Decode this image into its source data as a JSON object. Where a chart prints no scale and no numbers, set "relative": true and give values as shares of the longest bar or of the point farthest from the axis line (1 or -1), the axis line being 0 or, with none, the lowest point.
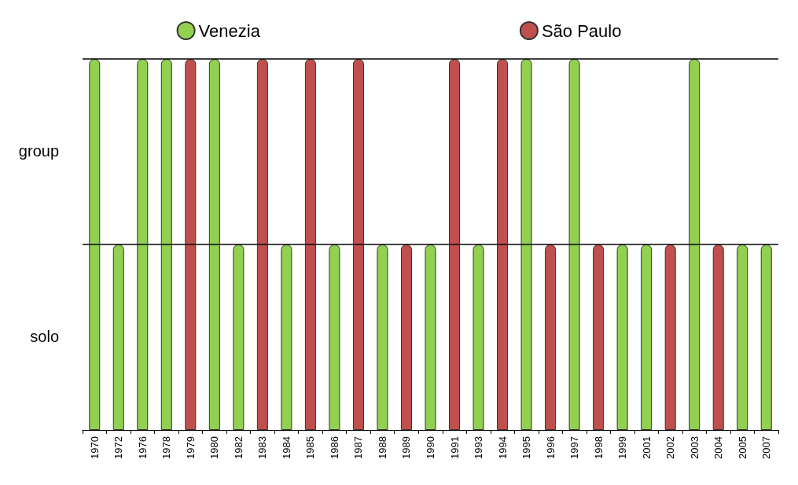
{
  "chart_data": {
    "type": "bar",
    "relative": true,
    "categories": [
      "1970",
      "1972",
      "1976",
      "1978",
      "1979",
      "1980",
      "1982",
      "1983",
      "1984",
      "1985",
      "1986",
      "1987",
      "1988",
      "1989",
      "1990",
      "1991",
      "1993",
      "1994",
      "1995",
      "1996",
      "1997",
      "1998",
      "1999",
      "2001",
      "2002",
      "2003",
      "2004",
      "2005",
      "2007"
    ],
    "series": [
      {
        "name": "Venezia",
        "color": "#92d050",
        "values": [
          1,
          0.5,
          1,
          1,
          null,
          1,
          0.5,
          null,
          0.5,
          null,
          0.5,
          null,
          0.5,
          null,
          0.5,
          null,
          0.5,
          null,
          1,
          null,
          1,
          null,
          0.5,
          0.5,
          null,
          1,
          null,
          0.5,
          0.5
        ]
      },
      {
        "name": "São Paulo",
        "color": "#c0504d",
        "values": [
          null,
          null,
          null,
          null,
          1,
          null,
          null,
          1,
          null,
          1,
          null,
          1,
          null,
          0.5,
          null,
          1,
          null,
          1,
          null,
          0.5,
          null,
          0.5,
          null,
          null,
          0.5,
          null,
          0.5,
          null,
          null
        ]
      }
    ],
    "annotations": [
      "group",
      "solo"
    ],
    "ref_lines": [
      {
        "axis": "y",
        "value": 0.5
      },
      {
        "axis": "y",
        "value": 1
      }
    ],
    "legend": "top"
  }
}
